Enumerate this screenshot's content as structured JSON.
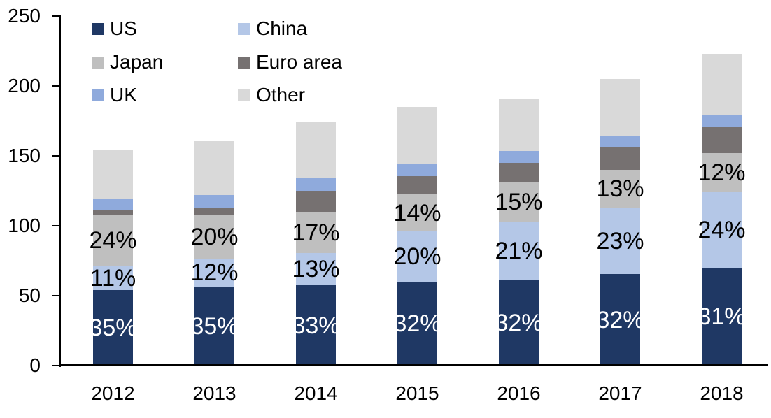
{
  "chart_data": {
    "type": "bar",
    "stacked": true,
    "title": "",
    "xlabel": "",
    "ylabel": "",
    "background": "#ffffff",
    "axis_color": "#000000",
    "text_color": "#000000",
    "gridlines": false,
    "legend_position": "top-left-two-columns",
    "ylim": [
      0,
      250
    ],
    "yticks": [
      "0",
      "50",
      "100",
      "150",
      "200",
      "250"
    ],
    "ytick_values": [
      0,
      50,
      100,
      150,
      200,
      250
    ],
    "categories": [
      "2012",
      "2013",
      "2014",
      "2015",
      "2016",
      "2017",
      "2018"
    ],
    "totals": [
      154.5,
      160.5,
      174.5,
      185,
      191,
      205,
      223
    ],
    "series": [
      {
        "name": "US",
        "color": "#1f3864",
        "values": [
          54,
          56.5,
          57.5,
          60,
          61.5,
          65.5,
          70
        ],
        "segment_labels": [
          "35%",
          "35%",
          "33%",
          "32%",
          "32%",
          "32%",
          "31%"
        ],
        "label_color": "#ffffff"
      },
      {
        "name": "China",
        "color": "#b4c7e7",
        "values": [
          17.5,
          20,
          23,
          36,
          41,
          47.5,
          54
        ],
        "segment_labels": [
          "11%",
          "12%",
          "13%",
          "20%",
          "21%",
          "23%",
          "24%"
        ],
        "label_color": "#000000"
      },
      {
        "name": "Japan",
        "color": "#bfbfbf",
        "values": [
          36,
          31.5,
          29.5,
          26.5,
          29,
          27,
          28
        ],
        "segment_labels": [
          "24%",
          "20%",
          "17%",
          "14%",
          "15%",
          "13%",
          "12%"
        ],
        "label_color": "#000000"
      },
      {
        "name": "Euro area",
        "color": "#767171",
        "values": [
          4,
          5,
          15,
          13,
          13.5,
          16,
          18.5
        ],
        "segment_labels": null,
        "label_color": null
      },
      {
        "name": "UK",
        "color": "#8faadc",
        "values": [
          7.5,
          9,
          9,
          9,
          8.5,
          8.5,
          9
        ],
        "segment_labels": null,
        "label_color": null
      },
      {
        "name": "Other",
        "color": "#d9d9d9",
        "values": [
          35.5,
          38.5,
          40.5,
          40.5,
          37.5,
          40.5,
          43.5
        ],
        "segment_labels": null,
        "label_color": null
      }
    ]
  }
}
